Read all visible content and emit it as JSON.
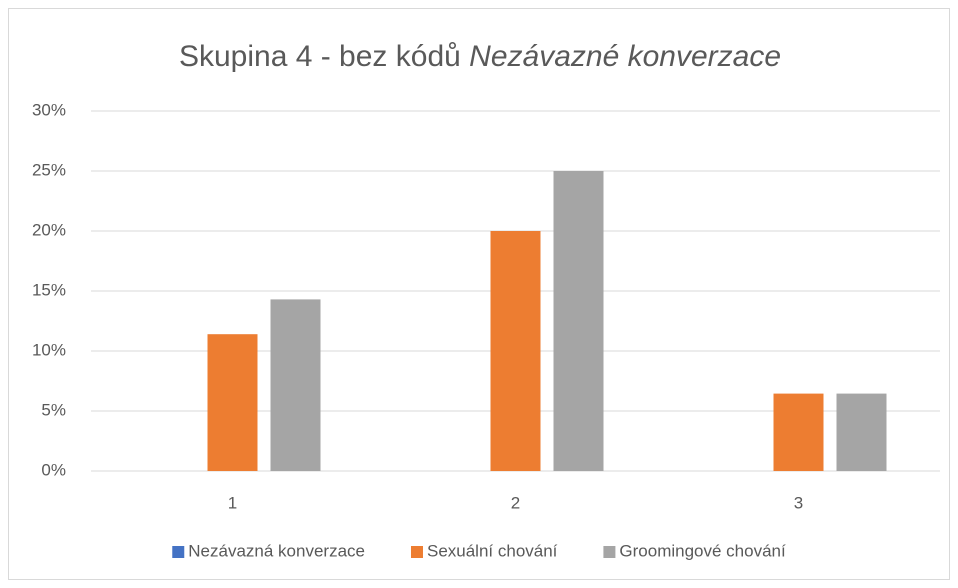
{
  "chart_data": {
    "type": "bar",
    "title": {
      "plain": "Skupina 4 - bez kódů",
      "italic": "Nezávazné konverzace"
    },
    "categories": [
      "1",
      "2",
      "3"
    ],
    "series": [
      {
        "name": "Nezávazná konverzace",
        "color": "#4472c4",
        "values": [
          0,
          0,
          0
        ]
      },
      {
        "name": "Sexuální chování",
        "color": "#ed7d31",
        "values": [
          11.4,
          20,
          6.45
        ]
      },
      {
        "name": "Groomingové chování",
        "color": "#a5a5a5",
        "values": [
          14.3,
          25,
          6.45
        ]
      }
    ],
    "ylim": [
      0,
      30
    ],
    "yticks": [
      {
        "value": 0,
        "label": "0%"
      },
      {
        "value": 5,
        "label": "5%"
      },
      {
        "value": 10,
        "label": "10%"
      },
      {
        "value": 15,
        "label": "15%"
      },
      {
        "value": 20,
        "label": "20%"
      },
      {
        "value": 25,
        "label": "25%"
      },
      {
        "value": 30,
        "label": "30%"
      }
    ],
    "grid": true,
    "legend": "bottom"
  }
}
